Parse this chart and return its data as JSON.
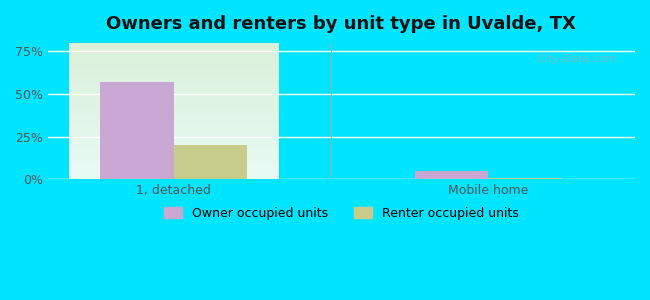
{
  "title": "Owners and renters by unit type in Uvalde, TX",
  "categories": [
    "1, detached",
    "Mobile home"
  ],
  "owner_values": [
    57,
    5
  ],
  "renter_values": [
    20,
    1
  ],
  "owner_color": "#c9a8d4",
  "renter_color": "#c8cc8a",
  "yticks": [
    0,
    25,
    50,
    75
  ],
  "yticklabels": [
    "0%",
    "25%",
    "50%",
    "75%"
  ],
  "ylim": [
    0,
    80
  ],
  "bar_width": 0.35,
  "background_top": "#e8f5e0",
  "background_bottom": "#d0f5f0",
  "outer_color": "#00e5ff",
  "legend_labels": [
    "Owner occupied units",
    "Renter occupied units"
  ],
  "watermark": "City-Data.com"
}
